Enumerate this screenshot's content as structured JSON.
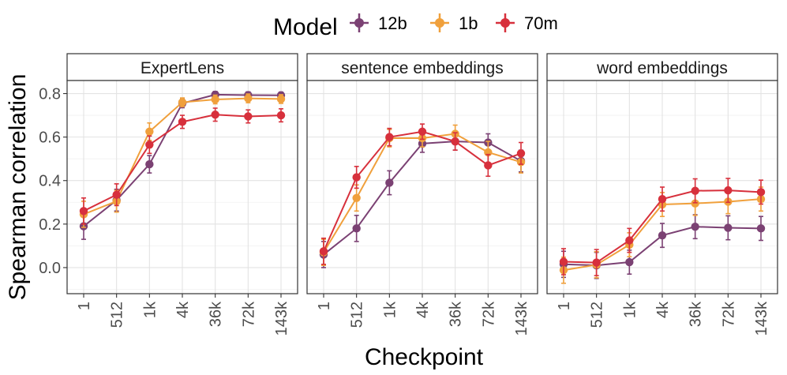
{
  "chart_data": {
    "type": "line",
    "legend": {
      "title": "Model",
      "position": "top"
    },
    "xlabel": "Checkpoint",
    "ylabel": "Spearman correlation",
    "categories": [
      "1",
      "512",
      "1k",
      "4k",
      "36k",
      "72k",
      "143k"
    ],
    "yticks": [
      "0.0",
      "0.2",
      "0.4",
      "0.6",
      "0.8"
    ],
    "ylim": [
      -0.12,
      0.86
    ],
    "series_meta": [
      {
        "name": "12b",
        "color": "#7b4173"
      },
      {
        "name": "1b",
        "color": "#f0a03c"
      },
      {
        "name": "70m",
        "color": "#d7303c"
      }
    ],
    "panels": [
      {
        "title": "ExpertLens",
        "series": [
          {
            "name": "12b",
            "values": [
              0.19,
              0.31,
              0.475,
              0.755,
              0.795,
              0.793,
              0.792
            ],
            "errors": [
              0.06,
              0.05,
              0.04,
              0.02,
              0.015,
              0.015,
              0.015
            ]
          },
          {
            "name": "1b",
            "values": [
              0.245,
              0.305,
              0.625,
              0.76,
              0.773,
              0.778,
              0.775
            ],
            "errors": [
              0.06,
              0.05,
              0.04,
              0.02,
              0.02,
              0.02,
              0.02
            ]
          },
          {
            "name": "70m",
            "values": [
              0.26,
              0.335,
              0.565,
              0.67,
              0.703,
              0.695,
              0.7
            ],
            "errors": [
              0.06,
              0.05,
              0.04,
              0.03,
              0.03,
              0.03,
              0.03
            ]
          }
        ]
      },
      {
        "title": "sentence embeddings",
        "series": [
          {
            "name": "12b",
            "values": [
              0.06,
              0.18,
              0.39,
              0.57,
              0.58,
              0.575,
              0.49
            ],
            "errors": [
              0.06,
              0.06,
              0.055,
              0.04,
              0.04,
              0.04,
              0.05
            ]
          },
          {
            "name": "1b",
            "values": [
              0.07,
              0.32,
              0.595,
              0.595,
              0.615,
              0.53,
              0.485
            ],
            "errors": [
              0.06,
              0.06,
              0.04,
              0.04,
              0.04,
              0.05,
              0.05
            ]
          },
          {
            "name": "70m",
            "values": [
              0.075,
              0.415,
              0.6,
              0.625,
              0.58,
              0.47,
              0.525
            ],
            "errors": [
              0.06,
              0.05,
              0.04,
              0.035,
              0.04,
              0.05,
              0.05
            ]
          }
        ]
      },
      {
        "title": "word embeddings",
        "series": [
          {
            "name": "12b",
            "values": [
              0.015,
              0.01,
              0.025,
              0.148,
              0.188,
              0.183,
              0.18
            ],
            "errors": [
              0.06,
              0.06,
              0.055,
              0.055,
              0.055,
              0.055,
              0.055
            ]
          },
          {
            "name": "1b",
            "values": [
              -0.012,
              0.013,
              0.105,
              0.29,
              0.295,
              0.303,
              0.315
            ],
            "errors": [
              0.06,
              0.06,
              0.055,
              0.055,
              0.055,
              0.055,
              0.055
            ]
          },
          {
            "name": "70m",
            "values": [
              0.027,
              0.023,
              0.125,
              0.315,
              0.353,
              0.355,
              0.347
            ],
            "errors": [
              0.06,
              0.06,
              0.055,
              0.055,
              0.055,
              0.055,
              0.055
            ]
          }
        ]
      }
    ]
  }
}
